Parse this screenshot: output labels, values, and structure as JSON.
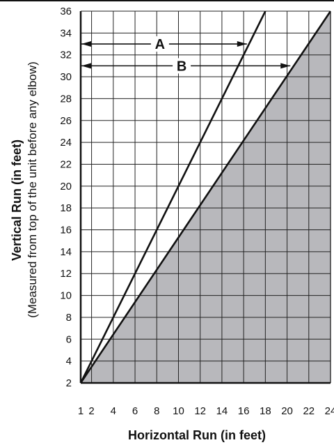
{
  "chart_data": {
    "type": "line",
    "xlabel": "Horizontal Run (in feet)",
    "ylabel": "Vertical Run (in feet)",
    "ylabel_sub": "(Measured from top of the unit before any elbow)",
    "xlim": [
      1,
      24
    ],
    "ylim": [
      2,
      36
    ],
    "x_ticks": [
      1,
      2,
      4,
      6,
      8,
      10,
      12,
      14,
      16,
      18,
      20,
      22,
      24
    ],
    "y_ticks": [
      2,
      4,
      6,
      8,
      10,
      12,
      14,
      16,
      18,
      20,
      22,
      24,
      26,
      28,
      30,
      32,
      34,
      36
    ],
    "grid": true,
    "series": [
      {
        "x": [
          1,
          18
        ],
        "y": [
          2,
          36
        ]
      },
      {
        "x": [
          1,
          24
        ],
        "y": [
          2,
          36
        ]
      }
    ],
    "shaded_region": {
      "below_series": 1,
      "color": "#b8b8bc"
    },
    "annotations": [
      {
        "text": "A",
        "y": 33,
        "x_from": 1,
        "x_to": 16.3
      },
      {
        "text": "B",
        "y": 31,
        "x_from": 1,
        "x_to": 20.3
      }
    ],
    "colors": {
      "line": "#111111",
      "grid": "#222222",
      "shade": "#b8b8bc"
    }
  }
}
